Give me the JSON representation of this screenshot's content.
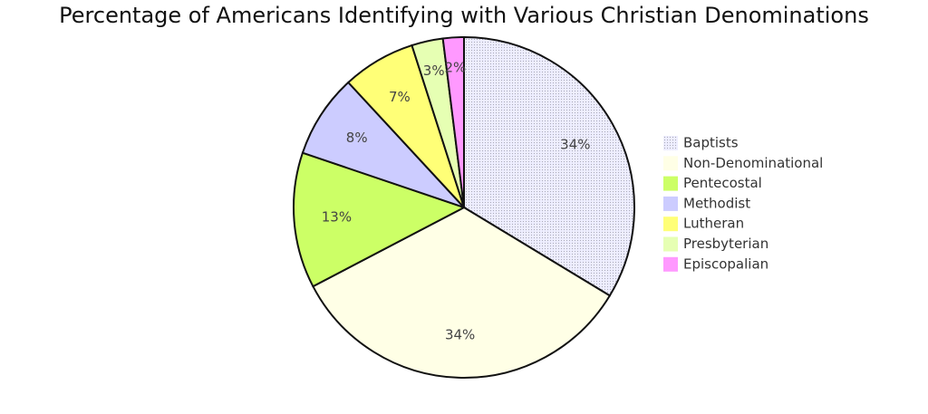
{
  "chart_data": {
    "type": "pie",
    "title": "Percentage of Americans Identifying with Various Christian Denominations",
    "categories": [
      "Baptists",
      "Non-Denominational",
      "Pentecostal",
      "Methodist",
      "Lutheran",
      "Presbyterian",
      "Episcopalian"
    ],
    "values": [
      34,
      34,
      13,
      8,
      7,
      3,
      2
    ],
    "value_labels": [
      "34%",
      "34%",
      "13%",
      "8%",
      "7%",
      "3%",
      "2%"
    ],
    "colors": [
      "#eeeeff",
      "#ffffe6",
      "#ccff66",
      "#ccccff",
      "#ffff77",
      "#e6ffb3",
      "#ff99ff"
    ],
    "legend": "right"
  }
}
